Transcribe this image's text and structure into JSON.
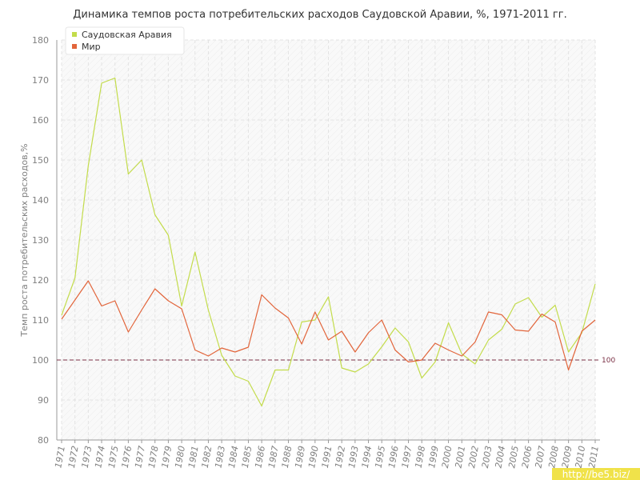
{
  "chart_data": {
    "type": "line",
    "title": "Динамика темпов роста потребительских расходов Саудовской Аравии, %, 1971-2011 гг.",
    "ylabel": "Темп роста потребительских расходов,%",
    "xlabel": "",
    "ylim": [
      80,
      180
    ],
    "yticks": [
      80,
      90,
      100,
      110,
      120,
      130,
      140,
      150,
      160,
      170,
      180
    ],
    "x": [
      "1971",
      "1972",
      "1973",
      "1974",
      "1975",
      "1976",
      "1977",
      "1978",
      "1979",
      "1980",
      "1981",
      "1982",
      "1983",
      "1984",
      "1985",
      "1986",
      "1987",
      "1988",
      "1989",
      "1990",
      "1991",
      "1992",
      "1993",
      "1994",
      "1995",
      "1996",
      "1997",
      "1998",
      "1999",
      "2000",
      "2001",
      "2002",
      "2003",
      "2004",
      "2005",
      "2006",
      "2007",
      "2008",
      "2009",
      "2010",
      "2011"
    ],
    "series": [
      {
        "name": "Саудовская Аравия",
        "color": "#c3dc4b",
        "values": [
          111.2,
          120.5,
          148.5,
          169.2,
          170.5,
          146.5,
          150.0,
          136.3,
          131.2,
          113.5,
          127.0,
          112.5,
          101.2,
          96.0,
          94.7,
          88.5,
          97.5,
          97.5,
          109.5,
          110.0,
          115.8,
          98.0,
          97.0,
          99.0,
          103.3,
          108.0,
          104.5,
          95.5,
          99.5,
          109.3,
          101.5,
          99.0,
          105.0,
          107.7,
          114.0,
          115.6,
          110.7,
          113.7,
          102.0,
          106.8,
          119.0
        ]
      },
      {
        "name": "Мир",
        "color": "#e2653b",
        "values": [
          110.2,
          115.0,
          119.8,
          113.5,
          114.8,
          107.0,
          112.5,
          117.8,
          114.8,
          112.8,
          102.5,
          101.0,
          103.0,
          102.0,
          103.2,
          116.3,
          113.0,
          110.5,
          104.0,
          112.0,
          105.0,
          107.2,
          102.0,
          106.8,
          110.0,
          102.5,
          99.5,
          100.0,
          104.2,
          102.5,
          101.0,
          104.5,
          112.0,
          111.3,
          107.5,
          107.2,
          111.5,
          109.5,
          97.5,
          107.2,
          110.0
        ]
      }
    ],
    "reference_line": {
      "value": 100,
      "label": "100",
      "color": "#7a3045"
    },
    "legend_position": "top-left",
    "grid": true
  },
  "watermark": {
    "text": "http://be5.biz/"
  },
  "colors": {
    "grid": "#e3e3e3",
    "plot_background": "#f6f6f6",
    "axis": "#999999",
    "watermark_bg": "#f0e24a"
  }
}
